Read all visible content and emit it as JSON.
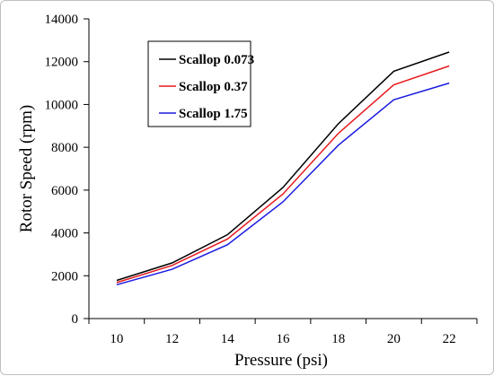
{
  "chart_data": {
    "type": "line",
    "title": "",
    "xlabel": "Pressure (psi)",
    "ylabel": "Rotor Speed (rpm)",
    "x": [
      10,
      12,
      14,
      16,
      18,
      20,
      22
    ],
    "xlim": [
      9,
      23
    ],
    "ylim": [
      0,
      14000
    ],
    "xticks": [
      10,
      12,
      14,
      16,
      18,
      20,
      22
    ],
    "yticks": [
      0,
      2000,
      4000,
      6000,
      8000,
      10000,
      12000,
      14000
    ],
    "grid": false,
    "legend_position": "top-left",
    "series": [
      {
        "name": "Scallop 0.073",
        "color": "#000000",
        "values": [
          1780,
          2600,
          3920,
          6120,
          9100,
          11550,
          12450
        ]
      },
      {
        "name": "Scallop 0.37",
        "color": "#e8191d",
        "values": [
          1680,
          2480,
          3720,
          5820,
          8650,
          10920,
          11800
        ]
      },
      {
        "name": "Scallop 1.75",
        "color": "#1a1ae0",
        "values": [
          1580,
          2300,
          3450,
          5450,
          8100,
          10220,
          11000
        ]
      }
    ]
  }
}
